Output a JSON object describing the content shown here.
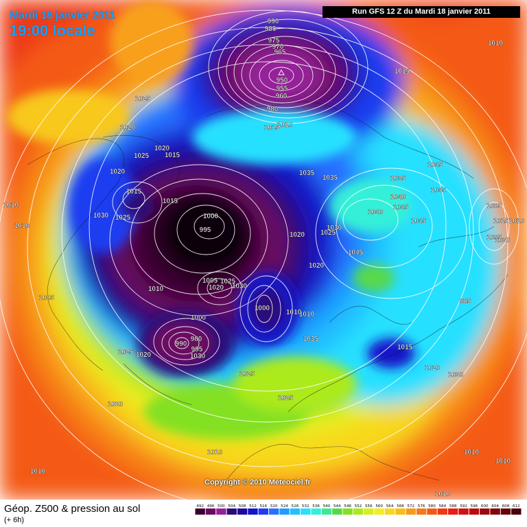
{
  "header": {
    "date_line": "Mardi 18 janvier 2011",
    "time_line": "19:00 locale",
    "run_info": "Run GFS 12 Z du Mardi 18 janvier 2011"
  },
  "copyright": "Copyright © 2010 Meteociel.fr",
  "footer": {
    "title": "Géop. Z500 & pression au sol",
    "subtitle": "(+ 6h)"
  },
  "legend": {
    "values": [
      "492",
      "496",
      "500",
      "504",
      "508",
      "512",
      "516",
      "520",
      "524",
      "528",
      "532",
      "536",
      "540",
      "544",
      "548",
      "552",
      "556",
      "560",
      "564",
      "568",
      "572",
      "576",
      "580",
      "584",
      "588",
      "592",
      "596",
      "600",
      "604",
      "608",
      "612"
    ],
    "colors": [
      "#3a0030",
      "#6a0860",
      "#96209a",
      "#2a0a78",
      "#1c0aa0",
      "#1414c8",
      "#1e3cf0",
      "#2870ff",
      "#1e9cff",
      "#22c0ff",
      "#28e0ff",
      "#34f0d8",
      "#3ce898",
      "#58d848",
      "#84e022",
      "#acea1e",
      "#d4f01e",
      "#f2ee20",
      "#f8d81e",
      "#f8bc1c",
      "#f89a1a",
      "#f67a18",
      "#f45a16",
      "#ef3a14",
      "#e81f12",
      "#d21012",
      "#b80c10",
      "#9c080e",
      "#80060c",
      "#64040a",
      "#460208"
    ]
  },
  "isobars": [
    {
      "value": "990"
    },
    {
      "value": "985"
    },
    {
      "value": "975"
    },
    {
      "value": "970"
    },
    {
      "value": "965"
    },
    {
      "value": "950"
    },
    {
      "value": "955"
    },
    {
      "value": "960"
    },
    {
      "value": "980"
    },
    {
      "value": "1015"
    },
    {
      "value": "1010"
    },
    {
      "value": "1010"
    },
    {
      "value": "1015"
    },
    {
      "value": "1025"
    },
    {
      "value": "1020"
    },
    {
      "value": "1020"
    },
    {
      "value": "1025"
    },
    {
      "value": "1015"
    },
    {
      "value": "1020"
    },
    {
      "value": "1015"
    },
    {
      "value": "1015"
    },
    {
      "value": "1010"
    },
    {
      "value": "1010"
    },
    {
      "value": "1030"
    },
    {
      "value": "1025"
    },
    {
      "value": "1000"
    },
    {
      "value": "995"
    },
    {
      "value": "1035"
    },
    {
      "value": "1035"
    },
    {
      "value": "1035"
    },
    {
      "value": "1045"
    },
    {
      "value": "1040"
    },
    {
      "value": "1045"
    },
    {
      "value": "1045"
    },
    {
      "value": "1040"
    },
    {
      "value": "1045"
    },
    {
      "value": "1005"
    },
    {
      "value": "1010"
    },
    {
      "value": "1015"
    },
    {
      "value": "1005"
    },
    {
      "value": "1030"
    },
    {
      "value": "1020"
    },
    {
      "value": "1030"
    },
    {
      "value": "1025"
    },
    {
      "value": "1020"
    },
    {
      "value": "1045"
    },
    {
      "value": "1010"
    },
    {
      "value": "1005"
    },
    {
      "value": "1005"
    },
    {
      "value": "1020"
    },
    {
      "value": "1025"
    },
    {
      "value": "1030"
    },
    {
      "value": "1000"
    },
    {
      "value": "1000"
    },
    {
      "value": "1010"
    },
    {
      "value": "1010"
    },
    {
      "value": "1035"
    },
    {
      "value": "985"
    },
    {
      "value": "980"
    },
    {
      "value": "990"
    },
    {
      "value": "995"
    },
    {
      "value": "1030"
    },
    {
      "value": "1025"
    },
    {
      "value": "1020"
    },
    {
      "value": "1015"
    },
    {
      "value": "1020"
    },
    {
      "value": "1030"
    },
    {
      "value": "1025"
    },
    {
      "value": "1025"
    },
    {
      "value": "1020"
    },
    {
      "value": "1010"
    },
    {
      "value": "1010"
    },
    {
      "value": "1010"
    },
    {
      "value": "1010"
    },
    {
      "value": "1010"
    }
  ]
}
